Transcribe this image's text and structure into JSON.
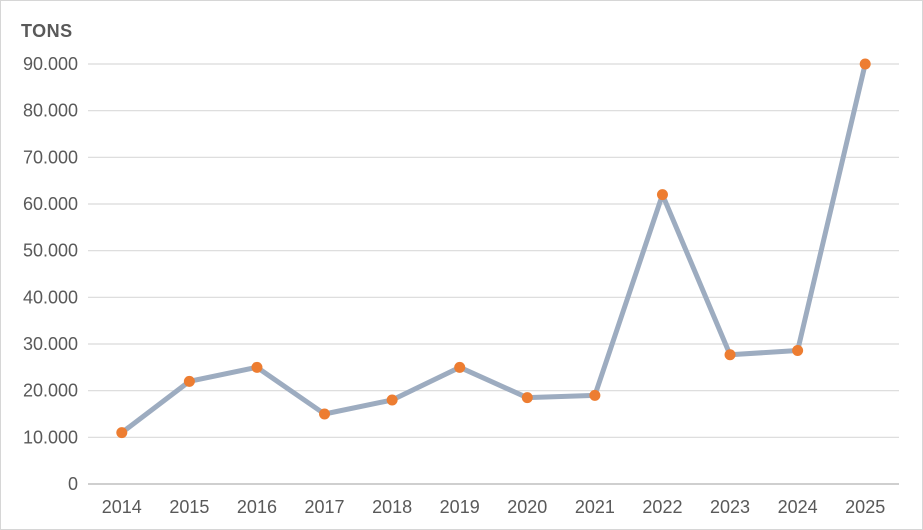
{
  "chart_data": {
    "type": "line",
    "title": "TONS",
    "categories": [
      "2014",
      "2015",
      "2016",
      "2017",
      "2018",
      "2019",
      "2020",
      "2021",
      "2022",
      "2023",
      "2024",
      "2025"
    ],
    "series": [
      {
        "name": "TONS",
        "values": [
          11000,
          22000,
          25000,
          15000,
          18000,
          25000,
          18500,
          19000,
          62000,
          27700,
          28600,
          90000
        ]
      }
    ],
    "xlabel": "",
    "ylabel": "TONS",
    "ylim": [
      0,
      90000
    ],
    "ytick_interval": 10000,
    "ytick_labels": [
      "0",
      "10.000",
      "20.000",
      "30.000",
      "40.000",
      "50.000",
      "60.000",
      "70.000",
      "80.000",
      "90.000"
    ],
    "grid": "horizontal",
    "legend_position": "none",
    "colors": {
      "line": "#9DACC0",
      "marker": "#ED7D31",
      "text": "#595959",
      "gridline": "#D9D9D9",
      "axis_line": "#BFBFBF",
      "border": "#D6D6D6",
      "background": "#FFFFFF"
    }
  }
}
